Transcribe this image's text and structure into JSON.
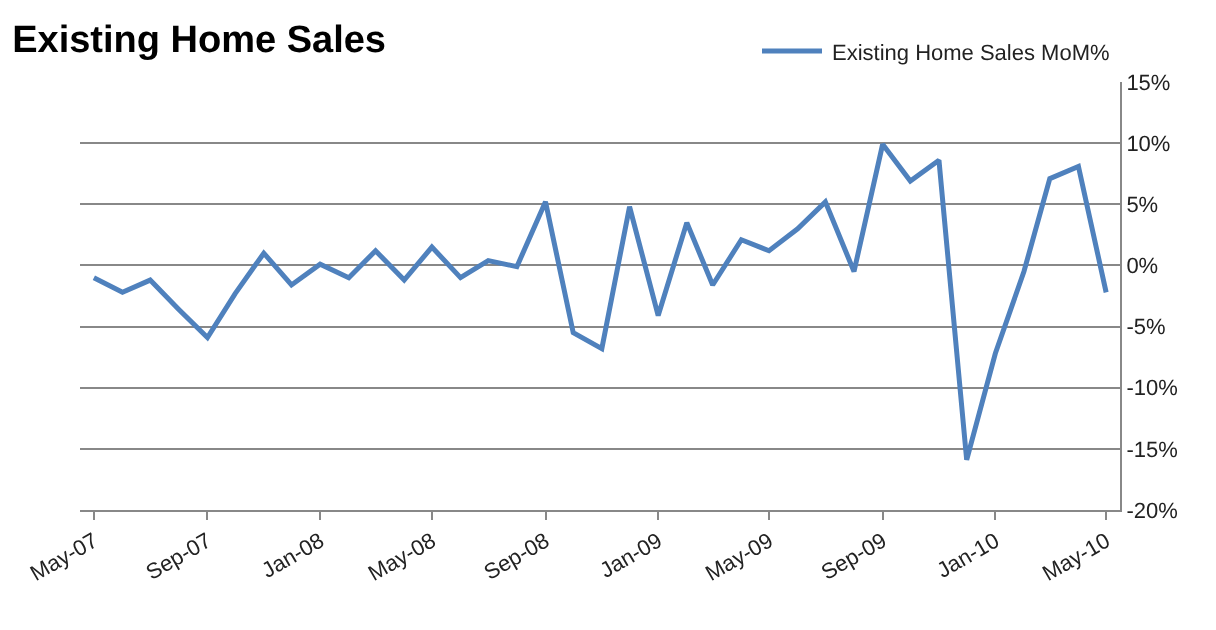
{
  "chart_data": {
    "type": "line",
    "title": "Existing Home Sales",
    "x": [
      "2007-05",
      "2007-06",
      "2007-07",
      "2007-08",
      "2007-09",
      "2007-10",
      "2007-11",
      "2007-12",
      "2008-01",
      "2008-02",
      "2008-03",
      "2008-04",
      "2008-05",
      "2008-06",
      "2008-07",
      "2008-08",
      "2008-09",
      "2008-10",
      "2008-11",
      "2008-12",
      "2009-01",
      "2009-02",
      "2009-03",
      "2009-04",
      "2009-05",
      "2009-06",
      "2009-07",
      "2009-08",
      "2009-09",
      "2009-10",
      "2009-11",
      "2009-12",
      "2010-01",
      "2010-02",
      "2010-03",
      "2010-04",
      "2010-05"
    ],
    "series": [
      {
        "name": "Existing Home Sales MoM%",
        "color": "#4f81bd",
        "values": [
          -1.0,
          -2.2,
          -1.2,
          -3.6,
          -5.9,
          -2.3,
          1.0,
          -1.6,
          0.1,
          -1.0,
          1.2,
          -1.2,
          1.5,
          -1.0,
          0.4,
          -0.1,
          5.2,
          -5.5,
          -6.8,
          4.8,
          -4.1,
          3.5,
          -1.6,
          2.1,
          1.2,
          3.0,
          5.2,
          -0.5,
          9.9,
          6.9,
          8.6,
          -15.9,
          -7.2,
          -0.5,
          7.1,
          8.1,
          -2.2
        ]
      }
    ],
    "xlim": [
      "2007-04-16",
      "2010-05-16"
    ],
    "xticks": [
      {
        "value": "2007-05",
        "label": "May-07"
      },
      {
        "value": "2007-09",
        "label": "Sep-07"
      },
      {
        "value": "2008-01",
        "label": "Jan-08"
      },
      {
        "value": "2008-05",
        "label": "May-08"
      },
      {
        "value": "2008-09",
        "label": "Sep-08"
      },
      {
        "value": "2009-01",
        "label": "Jan-09"
      },
      {
        "value": "2009-05",
        "label": "May-09"
      },
      {
        "value": "2009-09",
        "label": "Sep-09"
      },
      {
        "value": "2010-01",
        "label": "Jan-10"
      },
      {
        "value": "2010-05",
        "label": "May-10"
      }
    ],
    "ylim": [
      -20,
      15
    ],
    "yticks": [
      {
        "value": 15,
        "label": "15%"
      },
      {
        "value": 10,
        "label": "10%"
      },
      {
        "value": 5,
        "label": "5%"
      },
      {
        "value": 0,
        "label": "0%"
      },
      {
        "value": -5,
        "label": "-5%"
      },
      {
        "value": -10,
        "label": "-10%"
      },
      {
        "value": -15,
        "label": "-15%"
      },
      {
        "value": -20,
        "label": "-20%"
      }
    ],
    "grid": "y",
    "legend": "top right",
    "marker": "none",
    "line_style": "solid"
  }
}
